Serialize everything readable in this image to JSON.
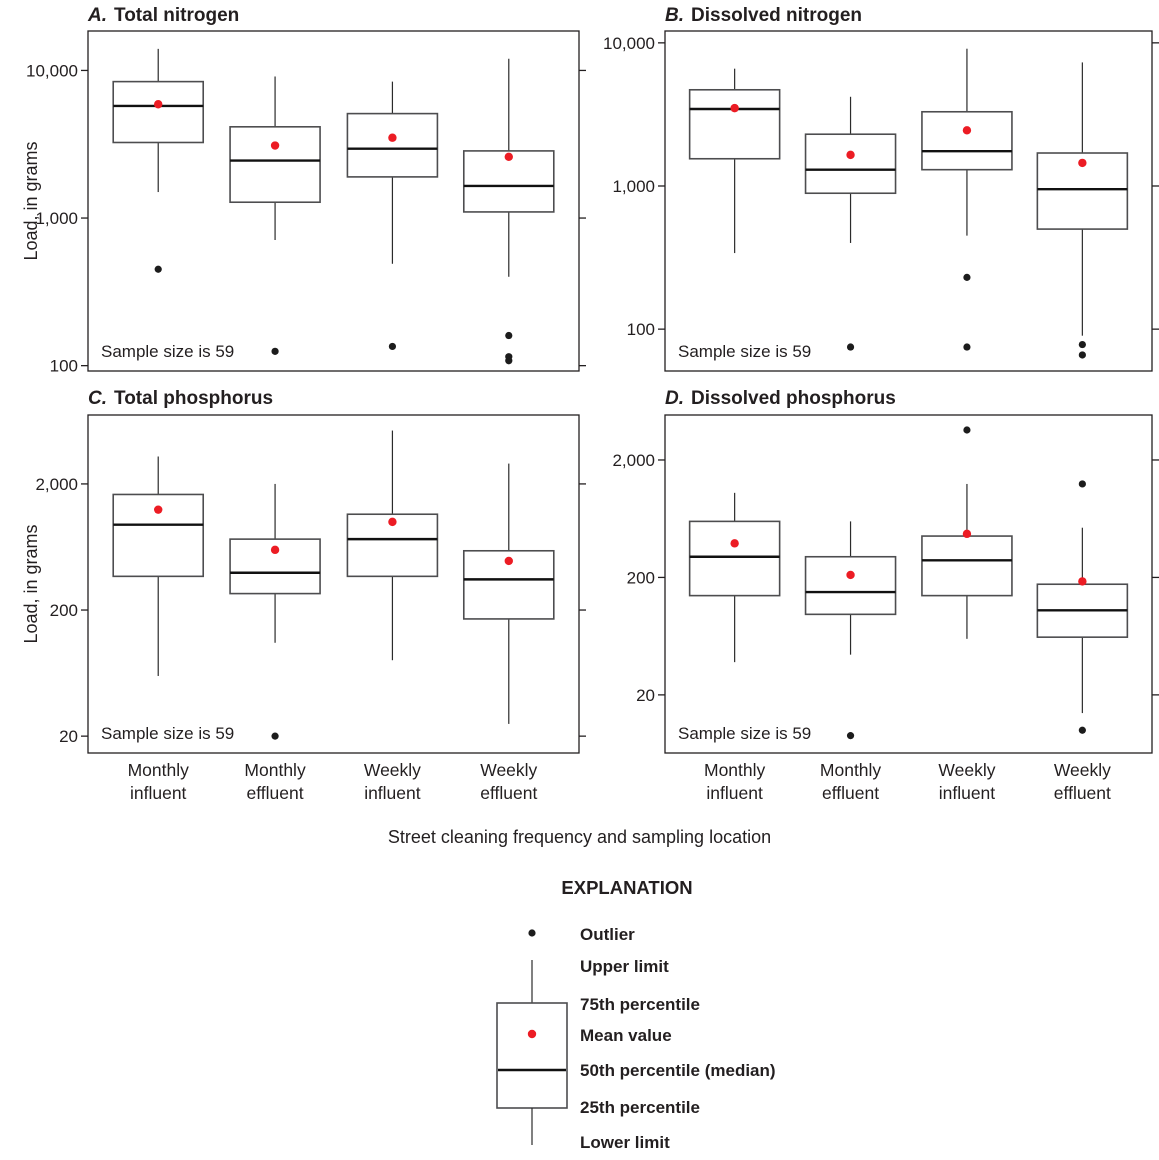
{
  "figure": {
    "y_axis_label": "Load, in grams",
    "x_axis_label": "Street cleaning frequency and sampling location",
    "sample_size_note": "Sample size is 59",
    "categories": [
      [
        "Monthly",
        "influent"
      ],
      [
        "Monthly",
        "effluent"
      ],
      [
        "Weekly",
        "influent"
      ],
      [
        "Weekly",
        "effluent"
      ]
    ]
  },
  "legend": {
    "heading": "EXPLANATION",
    "items": [
      "Outlier",
      "Upper limit",
      "75th percentile",
      "Mean value",
      "50th percentile (median)",
      "25th percentile",
      "Lower limit"
    ]
  },
  "colors": {
    "axis": "#231f20",
    "box_border": "#4d4d4f",
    "median": "#111111",
    "whisker": "#2b2b2b",
    "mean": "#ec1c24",
    "outlier": "#1c1c1c",
    "text": "#231f20"
  },
  "chart_data": [
    {
      "id": "A",
      "type": "box",
      "title_letter": "A.",
      "title": "Total nitrogen",
      "yscale": "log",
      "ylim": [
        92,
        18500
      ],
      "yticks": [
        100,
        1000,
        10000
      ],
      "ytick_labels": [
        "100",
        "1,000",
        "10,000"
      ],
      "sample_size": 59,
      "boxes": [
        {
          "category": "Monthly influent",
          "upper_limit": 14000,
          "p75": 8400,
          "mean": 5900,
          "median": 5750,
          "p25": 3250,
          "lower_limit": 1500,
          "outliers": [
            450
          ]
        },
        {
          "category": "Monthly effluent",
          "upper_limit": 9100,
          "p75": 4150,
          "mean": 3100,
          "median": 2450,
          "p25": 1280,
          "lower_limit": 710,
          "outliers": [
            125
          ]
        },
        {
          "category": "Weekly influent",
          "upper_limit": 8400,
          "p75": 5100,
          "mean": 3500,
          "median": 2950,
          "p25": 1900,
          "lower_limit": 490,
          "outliers": [
            135
          ]
        },
        {
          "category": "Weekly effluent",
          "upper_limit": 12000,
          "p75": 2850,
          "mean": 2600,
          "median": 1650,
          "p25": 1100,
          "lower_limit": 400,
          "outliers": [
            160,
            115,
            108
          ]
        }
      ]
    },
    {
      "id": "B",
      "type": "box",
      "title_letter": "B.",
      "title": "Dissolved nitrogen",
      "yscale": "log",
      "ylim": [
        51,
        12100
      ],
      "yticks": [
        100,
        1000,
        10000
      ],
      "ytick_labels": [
        "100",
        "1,000",
        "10,000"
      ],
      "sample_size": 59,
      "boxes": [
        {
          "category": "Monthly influent",
          "upper_limit": 6600,
          "p75": 4700,
          "mean": 3500,
          "median": 3450,
          "p25": 1550,
          "lower_limit": 340,
          "outliers": []
        },
        {
          "category": "Monthly effluent",
          "upper_limit": 4200,
          "p75": 2300,
          "mean": 1650,
          "median": 1300,
          "p25": 890,
          "lower_limit": 400,
          "outliers": [
            75
          ]
        },
        {
          "category": "Weekly influent",
          "upper_limit": 9100,
          "p75": 3300,
          "mean": 2450,
          "median": 1750,
          "p25": 1300,
          "lower_limit": 450,
          "outliers": [
            230,
            75
          ]
        },
        {
          "category": "Weekly effluent",
          "upper_limit": 7300,
          "p75": 1700,
          "mean": 1450,
          "median": 950,
          "p25": 500,
          "lower_limit": 90,
          "outliers": [
            78,
            66
          ]
        }
      ]
    },
    {
      "id": "C",
      "type": "box",
      "title_letter": "C.",
      "title": "Total phosphorus",
      "yscale": "log",
      "ylim": [
        14.7,
        7040
      ],
      "yticks": [
        20,
        200,
        2000
      ],
      "ytick_labels": [
        "20",
        "200",
        "2,000"
      ],
      "sample_size": 59,
      "boxes": [
        {
          "category": "Monthly influent",
          "upper_limit": 3300,
          "p75": 1650,
          "mean": 1250,
          "median": 950,
          "p25": 370,
          "lower_limit": 60,
          "outliers": []
        },
        {
          "category": "Monthly effluent",
          "upper_limit": 2000,
          "p75": 730,
          "mean": 600,
          "median": 395,
          "p25": 270,
          "lower_limit": 110,
          "outliers": [
            20
          ]
        },
        {
          "category": "Weekly influent",
          "upper_limit": 5300,
          "p75": 1150,
          "mean": 1000,
          "median": 730,
          "p25": 370,
          "lower_limit": 80,
          "outliers": []
        },
        {
          "category": "Weekly effluent",
          "upper_limit": 2900,
          "p75": 590,
          "mean": 490,
          "median": 350,
          "p25": 170,
          "lower_limit": 25,
          "outliers": []
        }
      ]
    },
    {
      "id": "D",
      "type": "box",
      "title_letter": "D.",
      "title": "Dissolved phosphorus",
      "yscale": "log",
      "ylim": [
        6.4,
        4830
      ],
      "yticks": [
        20,
        200,
        2000
      ],
      "ytick_labels": [
        "20",
        "200",
        "2,000"
      ],
      "sample_size": 59,
      "boxes": [
        {
          "category": "Monthly influent",
          "upper_limit": 1050,
          "p75": 600,
          "mean": 390,
          "median": 300,
          "p25": 140,
          "lower_limit": 38,
          "outliers": []
        },
        {
          "category": "Monthly effluent",
          "upper_limit": 600,
          "p75": 300,
          "mean": 210,
          "median": 150,
          "p25": 97,
          "lower_limit": 44,
          "outliers": [
            9
          ]
        },
        {
          "category": "Weekly influent",
          "upper_limit": 1250,
          "p75": 450,
          "mean": 470,
          "median": 280,
          "p25": 140,
          "lower_limit": 60,
          "outliers": [
            3600
          ]
        },
        {
          "category": "Weekly effluent",
          "upper_limit": 530,
          "p75": 175,
          "mean": 185,
          "median": 105,
          "p25": 62,
          "lower_limit": 14,
          "outliers": [
            1250,
            10
          ]
        }
      ]
    }
  ]
}
